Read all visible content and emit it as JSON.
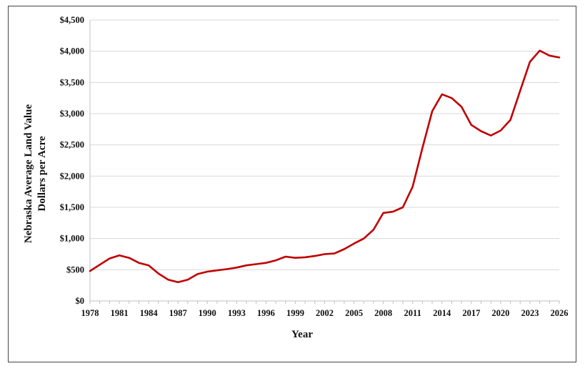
{
  "chart_data": {
    "type": "line",
    "title": "",
    "xlabel": "Year",
    "ylabel_lines": [
      "Nebraska  Average Land Value",
      "Dollars per Acre"
    ],
    "xlim": [
      1978,
      2026
    ],
    "ylim": [
      0,
      4500
    ],
    "y_ticks": [
      0,
      500,
      1000,
      1500,
      2000,
      2500,
      3000,
      3500,
      4000,
      4500
    ],
    "y_tick_labels": [
      "$0",
      "$500",
      "$1,000",
      "$1,500",
      "$2,000",
      "$2,500",
      "$3,000",
      "$3,500",
      "$4,000",
      "$4,500"
    ],
    "x_ticks": [
      1978,
      1981,
      1984,
      1987,
      1990,
      1993,
      1996,
      1999,
      2002,
      2005,
      2008,
      2011,
      2014,
      2017,
      2020,
      2023,
      2026
    ],
    "x_tick_labels": [
      "1978",
      "1981",
      "1984",
      "1987",
      "1990",
      "1993",
      "1996",
      "1999",
      "2002",
      "2005",
      "2008",
      "2011",
      "2014",
      "2017",
      "2020",
      "2023",
      "2026"
    ],
    "grid": true,
    "line_color": "#c00000",
    "x": [
      1978,
      1979,
      1980,
      1981,
      1982,
      1983,
      1984,
      1985,
      1986,
      1987,
      1988,
      1989,
      1990,
      1991,
      1992,
      1993,
      1994,
      1995,
      1996,
      1997,
      1998,
      1999,
      2000,
      2001,
      2002,
      2003,
      2004,
      2005,
      2006,
      2007,
      2008,
      2009,
      2010,
      2011,
      2012,
      2013,
      2014,
      2015,
      2016,
      2017,
      2018,
      2019,
      2020,
      2021,
      2022,
      2023,
      2024,
      2025,
      2026
    ],
    "values": [
      480,
      580,
      680,
      730,
      690,
      610,
      570,
      440,
      340,
      300,
      340,
      430,
      470,
      490,
      510,
      535,
      570,
      590,
      610,
      650,
      710,
      690,
      700,
      720,
      750,
      760,
      830,
      920,
      1000,
      1140,
      1410,
      1430,
      1500,
      1830,
      2450,
      3040,
      3310,
      3250,
      3110,
      2820,
      2720,
      2650,
      2730,
      2900,
      3370,
      3830,
      4010,
      3930,
      3900
    ]
  }
}
